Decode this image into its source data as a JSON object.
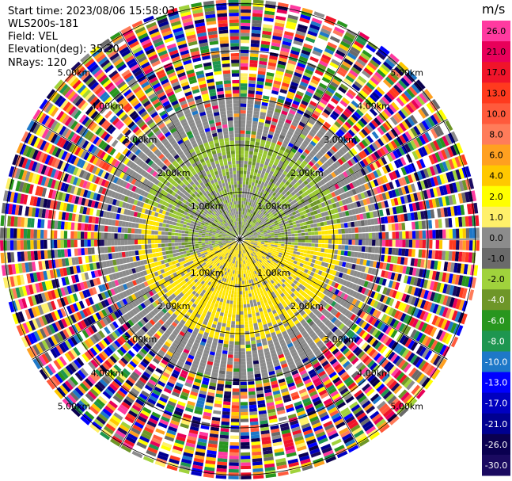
{
  "header": {
    "start_time": "Start time: 2023/08/06 15:58:03",
    "instrument": "WLS200s-181",
    "field": "Field: VEL",
    "elevation": "Elevation(deg): 35.30",
    "nrays": "NRays: 120"
  },
  "colorbar": {
    "unit": "m/s",
    "ticks": [
      "26.0",
      "21.0",
      "17.0",
      "13.0",
      "10.0",
      "8.0",
      "6.0",
      "4.0",
      "2.0",
      "1.0",
      "0.0",
      "-1.0",
      "-2.0",
      "-4.0",
      "-6.0",
      "-8.0",
      "-10.0",
      "-13.0",
      "-17.0",
      "-21.0",
      "-26.0",
      "-30.0"
    ],
    "colors": [
      "#ff3aa0",
      "#e8005a",
      "#f0142a",
      "#ff3a1e",
      "#ff5a3c",
      "#ff7c5a",
      "#ffa020",
      "#ffc800",
      "#ffff00",
      "#fff06a",
      "#8c8c8c",
      "#6a6a6a",
      "#a0d23c",
      "#6e9628",
      "#28961e",
      "#1e9650",
      "#1e78c8",
      "#0000ff",
      "#0000c0",
      "#000090",
      "#0a0050",
      "#1a0a60"
    ]
  },
  "chart_data": {
    "type": "heatmap",
    "projection": "polar PPI",
    "field": "VEL",
    "n_rays": 120,
    "range_rings_km": [
      1.0,
      2.0,
      3.0,
      4.0,
      5.0
    ],
    "ring_labels": [
      "1.00km",
      "2.00km",
      "3.00km",
      "4.00km",
      "5.00km"
    ],
    "spoke_angles_deg": [
      0,
      30,
      60,
      90,
      120,
      150,
      180,
      210,
      240,
      270,
      300,
      330
    ],
    "colorbar_unit": "m/s"
  }
}
